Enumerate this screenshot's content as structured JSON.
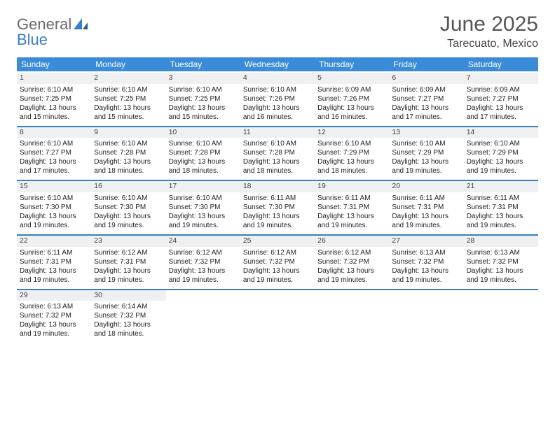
{
  "brand": {
    "word1": "General",
    "word2": "Blue"
  },
  "title": "June 2025",
  "location": "Tarecuato, Mexico",
  "colors": {
    "header_bg": "#3a8bd8",
    "header_fg": "#ffffff",
    "sep": "#3a7fc4",
    "daynum_bg": "#eef0f2",
    "brand_gray": "#6a6a6a",
    "brand_blue": "#3a7fc4"
  },
  "weekdays": [
    "Sunday",
    "Monday",
    "Tuesday",
    "Wednesday",
    "Thursday",
    "Friday",
    "Saturday"
  ],
  "weeks": [
    [
      {
        "n": "1",
        "sr": "6:10 AM",
        "ss": "7:25 PM",
        "dl": "13 hours and 15 minutes."
      },
      {
        "n": "2",
        "sr": "6:10 AM",
        "ss": "7:25 PM",
        "dl": "13 hours and 15 minutes."
      },
      {
        "n": "3",
        "sr": "6:10 AM",
        "ss": "7:25 PM",
        "dl": "13 hours and 15 minutes."
      },
      {
        "n": "4",
        "sr": "6:10 AM",
        "ss": "7:26 PM",
        "dl": "13 hours and 16 minutes."
      },
      {
        "n": "5",
        "sr": "6:09 AM",
        "ss": "7:26 PM",
        "dl": "13 hours and 16 minutes."
      },
      {
        "n": "6",
        "sr": "6:09 AM",
        "ss": "7:27 PM",
        "dl": "13 hours and 17 minutes."
      },
      {
        "n": "7",
        "sr": "6:09 AM",
        "ss": "7:27 PM",
        "dl": "13 hours and 17 minutes."
      }
    ],
    [
      {
        "n": "8",
        "sr": "6:10 AM",
        "ss": "7:27 PM",
        "dl": "13 hours and 17 minutes."
      },
      {
        "n": "9",
        "sr": "6:10 AM",
        "ss": "7:28 PM",
        "dl": "13 hours and 18 minutes."
      },
      {
        "n": "10",
        "sr": "6:10 AM",
        "ss": "7:28 PM",
        "dl": "13 hours and 18 minutes."
      },
      {
        "n": "11",
        "sr": "6:10 AM",
        "ss": "7:28 PM",
        "dl": "13 hours and 18 minutes."
      },
      {
        "n": "12",
        "sr": "6:10 AM",
        "ss": "7:29 PM",
        "dl": "13 hours and 18 minutes."
      },
      {
        "n": "13",
        "sr": "6:10 AM",
        "ss": "7:29 PM",
        "dl": "13 hours and 19 minutes."
      },
      {
        "n": "14",
        "sr": "6:10 AM",
        "ss": "7:29 PM",
        "dl": "13 hours and 19 minutes."
      }
    ],
    [
      {
        "n": "15",
        "sr": "6:10 AM",
        "ss": "7:30 PM",
        "dl": "13 hours and 19 minutes."
      },
      {
        "n": "16",
        "sr": "6:10 AM",
        "ss": "7:30 PM",
        "dl": "13 hours and 19 minutes."
      },
      {
        "n": "17",
        "sr": "6:10 AM",
        "ss": "7:30 PM",
        "dl": "13 hours and 19 minutes."
      },
      {
        "n": "18",
        "sr": "6:11 AM",
        "ss": "7:30 PM",
        "dl": "13 hours and 19 minutes."
      },
      {
        "n": "19",
        "sr": "6:11 AM",
        "ss": "7:31 PM",
        "dl": "13 hours and 19 minutes."
      },
      {
        "n": "20",
        "sr": "6:11 AM",
        "ss": "7:31 PM",
        "dl": "13 hours and 19 minutes."
      },
      {
        "n": "21",
        "sr": "6:11 AM",
        "ss": "7:31 PM",
        "dl": "13 hours and 19 minutes."
      }
    ],
    [
      {
        "n": "22",
        "sr": "6:11 AM",
        "ss": "7:31 PM",
        "dl": "13 hours and 19 minutes."
      },
      {
        "n": "23",
        "sr": "6:12 AM",
        "ss": "7:31 PM",
        "dl": "13 hours and 19 minutes."
      },
      {
        "n": "24",
        "sr": "6:12 AM",
        "ss": "7:32 PM",
        "dl": "13 hours and 19 minutes."
      },
      {
        "n": "25",
        "sr": "6:12 AM",
        "ss": "7:32 PM",
        "dl": "13 hours and 19 minutes."
      },
      {
        "n": "26",
        "sr": "6:12 AM",
        "ss": "7:32 PM",
        "dl": "13 hours and 19 minutes."
      },
      {
        "n": "27",
        "sr": "6:13 AM",
        "ss": "7:32 PM",
        "dl": "13 hours and 19 minutes."
      },
      {
        "n": "28",
        "sr": "6:13 AM",
        "ss": "7:32 PM",
        "dl": "13 hours and 19 minutes."
      }
    ],
    [
      {
        "n": "29",
        "sr": "6:13 AM",
        "ss": "7:32 PM",
        "dl": "13 hours and 19 minutes."
      },
      {
        "n": "30",
        "sr": "6:14 AM",
        "ss": "7:32 PM",
        "dl": "13 hours and 18 minutes."
      },
      null,
      null,
      null,
      null,
      null
    ]
  ],
  "labels": {
    "sunrise": "Sunrise: ",
    "sunset": "Sunset: ",
    "daylight": "Daylight: "
  }
}
